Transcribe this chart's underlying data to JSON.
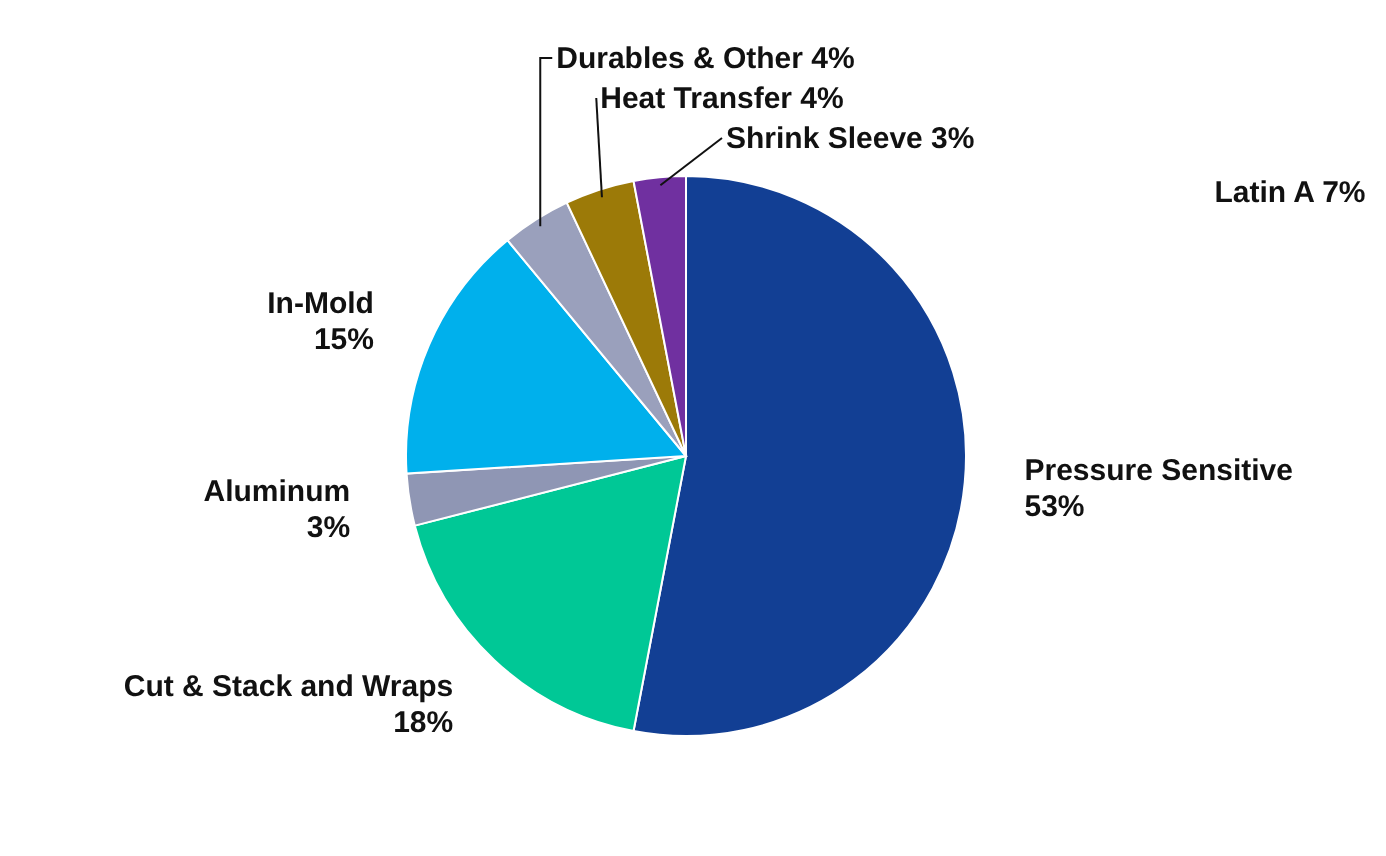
{
  "chart_data": {
    "type": "pie",
    "categories": [
      "Pressure Sensitive",
      "Cut & Stack and Wraps",
      "Aluminum",
      "In-Mold",
      "Durables & Other",
      "Heat Transfer",
      "Shrink Sleeve"
    ],
    "values": [
      53,
      18,
      3,
      15,
      4,
      4,
      3
    ],
    "value_labels": [
      "53%",
      "18%",
      "3%",
      "15%",
      "4%",
      "4%",
      "3%"
    ],
    "colors": [
      "#123f94",
      "#00c896",
      "#8f96b4",
      "#00b0ec",
      "#9aa0bc",
      "#9c7a08",
      "#7030a0"
    ],
    "annotations": [
      "Latin A 7%"
    ]
  }
}
